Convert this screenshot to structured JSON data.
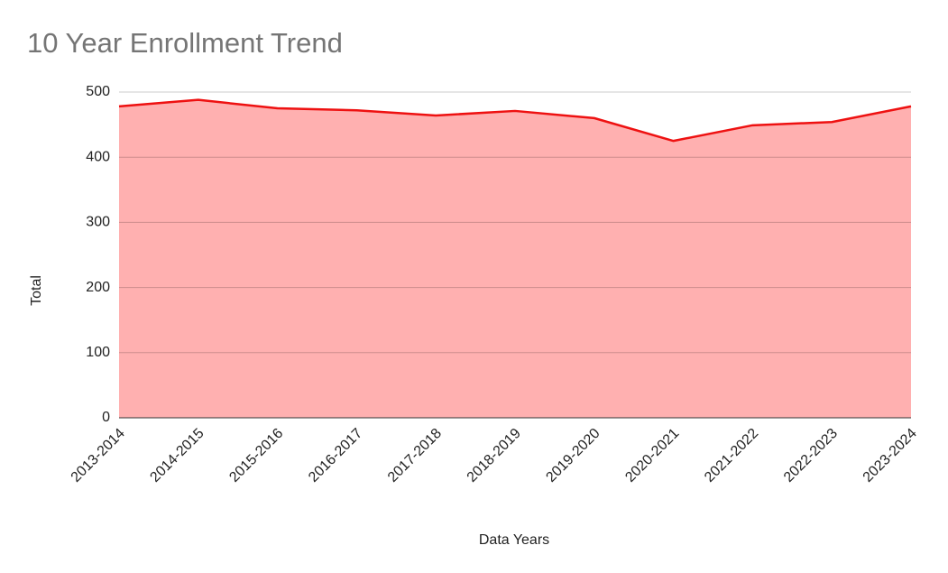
{
  "chart_data": {
    "type": "area",
    "title": "10 Year Enrollment Trend",
    "x_label": "Data Years",
    "y_label": "Total",
    "categories": [
      "2013-2014",
      "2014-2015",
      "2015-2016",
      "2016-2017",
      "2017-2018",
      "2018-2019",
      "2019-2020",
      "2020-2021",
      "2021-2022",
      "2022-2023",
      "2023-2024"
    ],
    "values": [
      478,
      488,
      475,
      472,
      464,
      471,
      460,
      425,
      449,
      454,
      478
    ],
    "line_color": "#ee1111",
    "fill_color": "#ffb0b0",
    "ylim": [
      0,
      500
    ],
    "yticks": [
      0,
      100,
      200,
      300,
      400,
      500
    ],
    "grid": true
  }
}
